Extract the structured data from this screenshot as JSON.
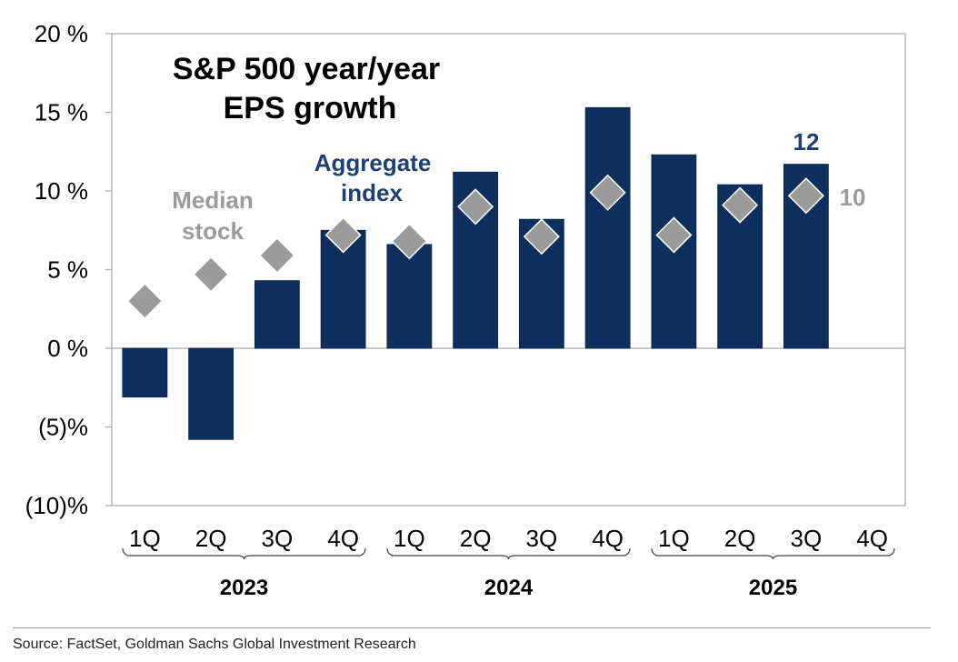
{
  "chart_data": {
    "type": "bar",
    "title_lines": [
      "S&P 500 year/year",
      "EPS growth"
    ],
    "categories": [
      "1Q",
      "2Q",
      "3Q",
      "4Q",
      "1Q",
      "2Q",
      "3Q",
      "4Q",
      "1Q",
      "2Q",
      "3Q",
      "4Q"
    ],
    "years": [
      {
        "label": "2023",
        "from": 0,
        "to": 3
      },
      {
        "label": "2024",
        "from": 4,
        "to": 7
      },
      {
        "label": "2025",
        "from": 8,
        "to": 11
      }
    ],
    "series": [
      {
        "kind": "bar",
        "color": "#0d2f5e",
        "values": [
          -3.1,
          -5.8,
          4.3,
          7.5,
          6.6,
          11.2,
          8.2,
          15.3,
          12.3,
          10.4,
          11.7,
          null
        ]
      },
      {
        "kind": "diamond",
        "color": "#9b9b9b",
        "values": [
          3.0,
          4.7,
          5.9,
          7.2,
          6.8,
          9.0,
          7.1,
          9.9,
          7.2,
          9.1,
          9.7,
          null
        ]
      }
    ],
    "ylim": [
      -10,
      20
    ],
    "yticks": [
      {
        "value": 20,
        "label": "20 %"
      },
      {
        "value": 15,
        "label": "15 %"
      },
      {
        "value": 10,
        "label": "10 %"
      },
      {
        "value": 5,
        "label": "5 %"
      },
      {
        "value": 0,
        "label": "0 %"
      },
      {
        "value": -5,
        "label": "(5)%"
      },
      {
        "value": -10,
        "label": "(10)%"
      }
    ],
    "annotations": {
      "aggregate": [
        "Aggregate",
        "index"
      ],
      "median": [
        "Median",
        "stock"
      ],
      "bar_value_label": "12",
      "diamond_value_label": "10"
    }
  },
  "source": "Source: FactSet, Goldman Sachs Global Investment Research"
}
